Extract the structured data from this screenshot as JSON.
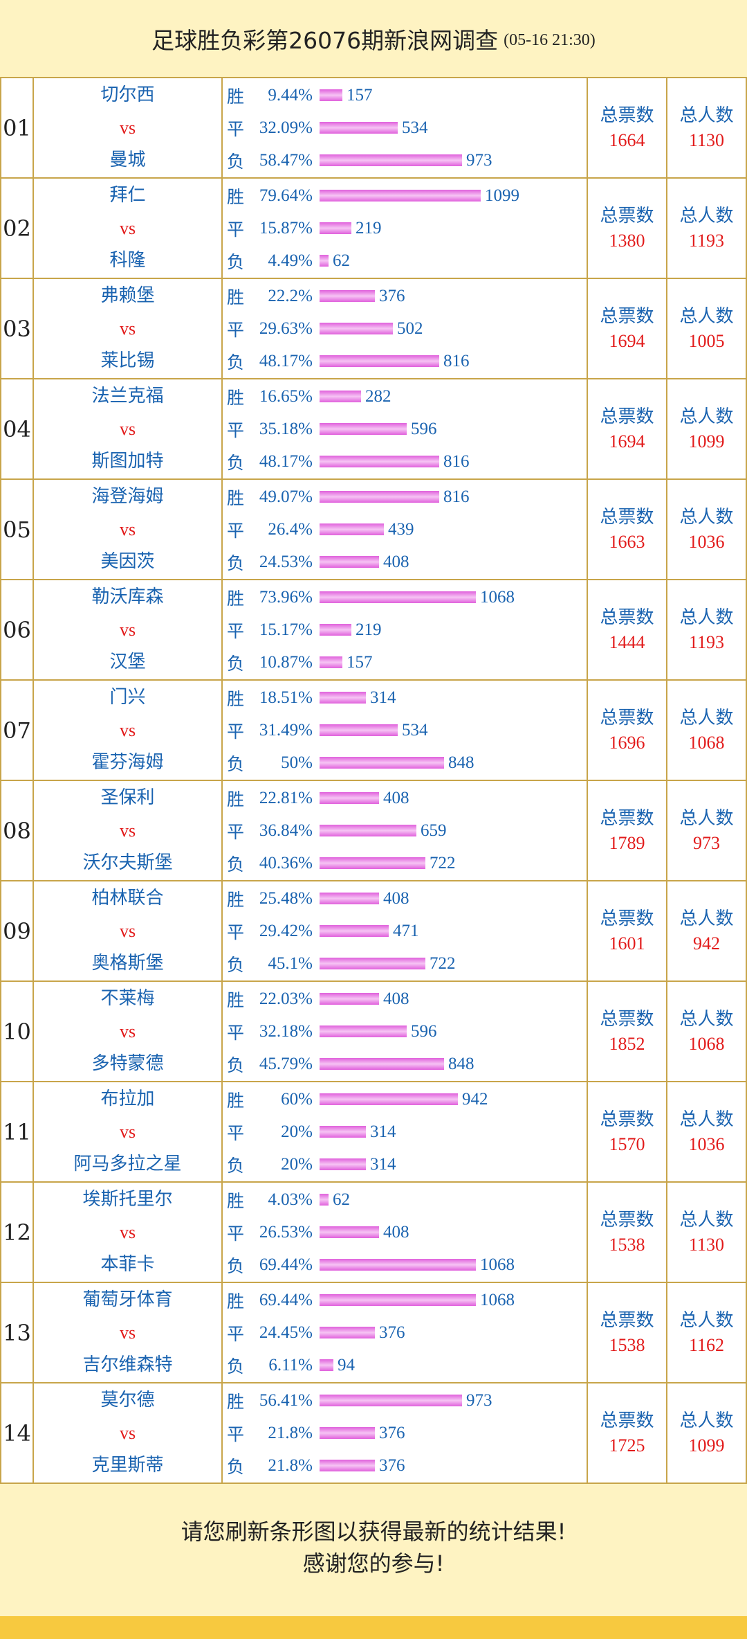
{
  "header": {
    "title": "足球胜负彩第26076期新浪网调查",
    "date": "(05-16 21:30)"
  },
  "labels": {
    "win": "胜",
    "draw": "平",
    "lose": "负",
    "vs": "vs",
    "total_votes": "总票数",
    "total_people": "总人数"
  },
  "matches": [
    {
      "no": "01",
      "home": "切尔西",
      "away": "曼城",
      "win": {
        "pct": "9.44%",
        "count": "157"
      },
      "draw": {
        "pct": "32.09%",
        "count": "534"
      },
      "lose": {
        "pct": "58.47%",
        "count": "973"
      },
      "total_votes": "1664",
      "total_people": "1130"
    },
    {
      "no": "02",
      "home": "拜仁",
      "away": "科隆",
      "win": {
        "pct": "79.64%",
        "count": "1099"
      },
      "draw": {
        "pct": "15.87%",
        "count": "219"
      },
      "lose": {
        "pct": "4.49%",
        "count": "62"
      },
      "total_votes": "1380",
      "total_people": "1193"
    },
    {
      "no": "03",
      "home": "弗赖堡",
      "away": "莱比锡",
      "win": {
        "pct": "22.2%",
        "count": "376"
      },
      "draw": {
        "pct": "29.63%",
        "count": "502"
      },
      "lose": {
        "pct": "48.17%",
        "count": "816"
      },
      "total_votes": "1694",
      "total_people": "1005"
    },
    {
      "no": "04",
      "home": "法兰克福",
      "away": "斯图加特",
      "win": {
        "pct": "16.65%",
        "count": "282"
      },
      "draw": {
        "pct": "35.18%",
        "count": "596"
      },
      "lose": {
        "pct": "48.17%",
        "count": "816"
      },
      "total_votes": "1694",
      "total_people": "1099"
    },
    {
      "no": "05",
      "home": "海登海姆",
      "away": "美因茨",
      "win": {
        "pct": "49.07%",
        "count": "816"
      },
      "draw": {
        "pct": "26.4%",
        "count": "439"
      },
      "lose": {
        "pct": "24.53%",
        "count": "408"
      },
      "total_votes": "1663",
      "total_people": "1036"
    },
    {
      "no": "06",
      "home": "勒沃库森",
      "away": "汉堡",
      "win": {
        "pct": "73.96%",
        "count": "1068"
      },
      "draw": {
        "pct": "15.17%",
        "count": "219"
      },
      "lose": {
        "pct": "10.87%",
        "count": "157"
      },
      "total_votes": "1444",
      "total_people": "1193"
    },
    {
      "no": "07",
      "home": "门兴",
      "away": "霍芬海姆",
      "win": {
        "pct": "18.51%",
        "count": "314"
      },
      "draw": {
        "pct": "31.49%",
        "count": "534"
      },
      "lose": {
        "pct": "50%",
        "count": "848"
      },
      "total_votes": "1696",
      "total_people": "1068"
    },
    {
      "no": "08",
      "home": "圣保利",
      "away": "沃尔夫斯堡",
      "win": {
        "pct": "22.81%",
        "count": "408"
      },
      "draw": {
        "pct": "36.84%",
        "count": "659"
      },
      "lose": {
        "pct": "40.36%",
        "count": "722"
      },
      "total_votes": "1789",
      "total_people": "973"
    },
    {
      "no": "09",
      "home": "柏林联合",
      "away": "奥格斯堡",
      "win": {
        "pct": "25.48%",
        "count": "408"
      },
      "draw": {
        "pct": "29.42%",
        "count": "471"
      },
      "lose": {
        "pct": "45.1%",
        "count": "722"
      },
      "total_votes": "1601",
      "total_people": "942"
    },
    {
      "no": "10",
      "home": "不莱梅",
      "away": "多特蒙德",
      "win": {
        "pct": "22.03%",
        "count": "408"
      },
      "draw": {
        "pct": "32.18%",
        "count": "596"
      },
      "lose": {
        "pct": "45.79%",
        "count": "848"
      },
      "total_votes": "1852",
      "total_people": "1068"
    },
    {
      "no": "11",
      "home": "布拉加",
      "away": "阿马多拉之星",
      "win": {
        "pct": "60%",
        "count": "942"
      },
      "draw": {
        "pct": "20%",
        "count": "314"
      },
      "lose": {
        "pct": "20%",
        "count": "314"
      },
      "total_votes": "1570",
      "total_people": "1036"
    },
    {
      "no": "12",
      "home": "埃斯托里尔",
      "away": "本菲卡",
      "win": {
        "pct": "4.03%",
        "count": "62"
      },
      "draw": {
        "pct": "26.53%",
        "count": "408"
      },
      "lose": {
        "pct": "69.44%",
        "count": "1068"
      },
      "total_votes": "1538",
      "total_people": "1130"
    },
    {
      "no": "13",
      "home": "葡萄牙体育",
      "away": "吉尔维森特",
      "win": {
        "pct": "69.44%",
        "count": "1068"
      },
      "draw": {
        "pct": "24.45%",
        "count": "376"
      },
      "lose": {
        "pct": "6.11%",
        "count": "94"
      },
      "total_votes": "1538",
      "total_people": "1162"
    },
    {
      "no": "14",
      "home": "莫尔德",
      "away": "克里斯蒂",
      "win": {
        "pct": "56.41%",
        "count": "973"
      },
      "draw": {
        "pct": "21.8%",
        "count": "376"
      },
      "lose": {
        "pct": "21.8%",
        "count": "376"
      },
      "total_votes": "1725",
      "total_people": "1099"
    }
  ],
  "footer": {
    "line1": "请您刷新条形图以获得最新的统计结果!",
    "line2": "感谢您的参与!"
  },
  "colors": {
    "background": "#fef3c2",
    "border": "#c8a54a",
    "text_blue": "#1a63b0",
    "text_red": "#e21b1b",
    "bar_pink": "#e060dc",
    "bottom_strip": "#f7c93f"
  }
}
